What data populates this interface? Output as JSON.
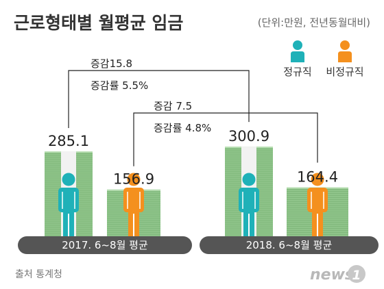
{
  "header": {
    "title": "근로형태별 월평균 임금",
    "unit": "(단위:만원, 전년동월대비)"
  },
  "legend": [
    {
      "label": "정규직",
      "color": "#1fb1b8"
    },
    {
      "label": "비정규직",
      "color": "#f4901e"
    }
  ],
  "chart_data": {
    "type": "bar",
    "categories": [
      "2017. 6~8월 평균",
      "2018. 6~8월 평균"
    ],
    "series": [
      {
        "name": "정규직",
        "values": [
          285.1,
          300.9
        ],
        "color": "#1fb1b8",
        "labels": [
          "285.1",
          "300.9"
        ]
      },
      {
        "name": "비정규직",
        "values": [
          156.9,
          164.4
        ],
        "color": "#f4901e",
        "labels": [
          "156.9",
          "164.4"
        ]
      }
    ],
    "annotations": [
      {
        "series": "정규직",
        "change": "증감15.8",
        "rate": "증감률 5.5%"
      },
      {
        "series": "비정규직",
        "change": "증감 7.5",
        "rate": "증감률 4.8%"
      }
    ],
    "colors": {
      "money": "#8fc48a",
      "pill": "#555555"
    }
  },
  "footer": {
    "source": "출처 통계청",
    "logo": "news",
    "logo_mark": "1"
  }
}
